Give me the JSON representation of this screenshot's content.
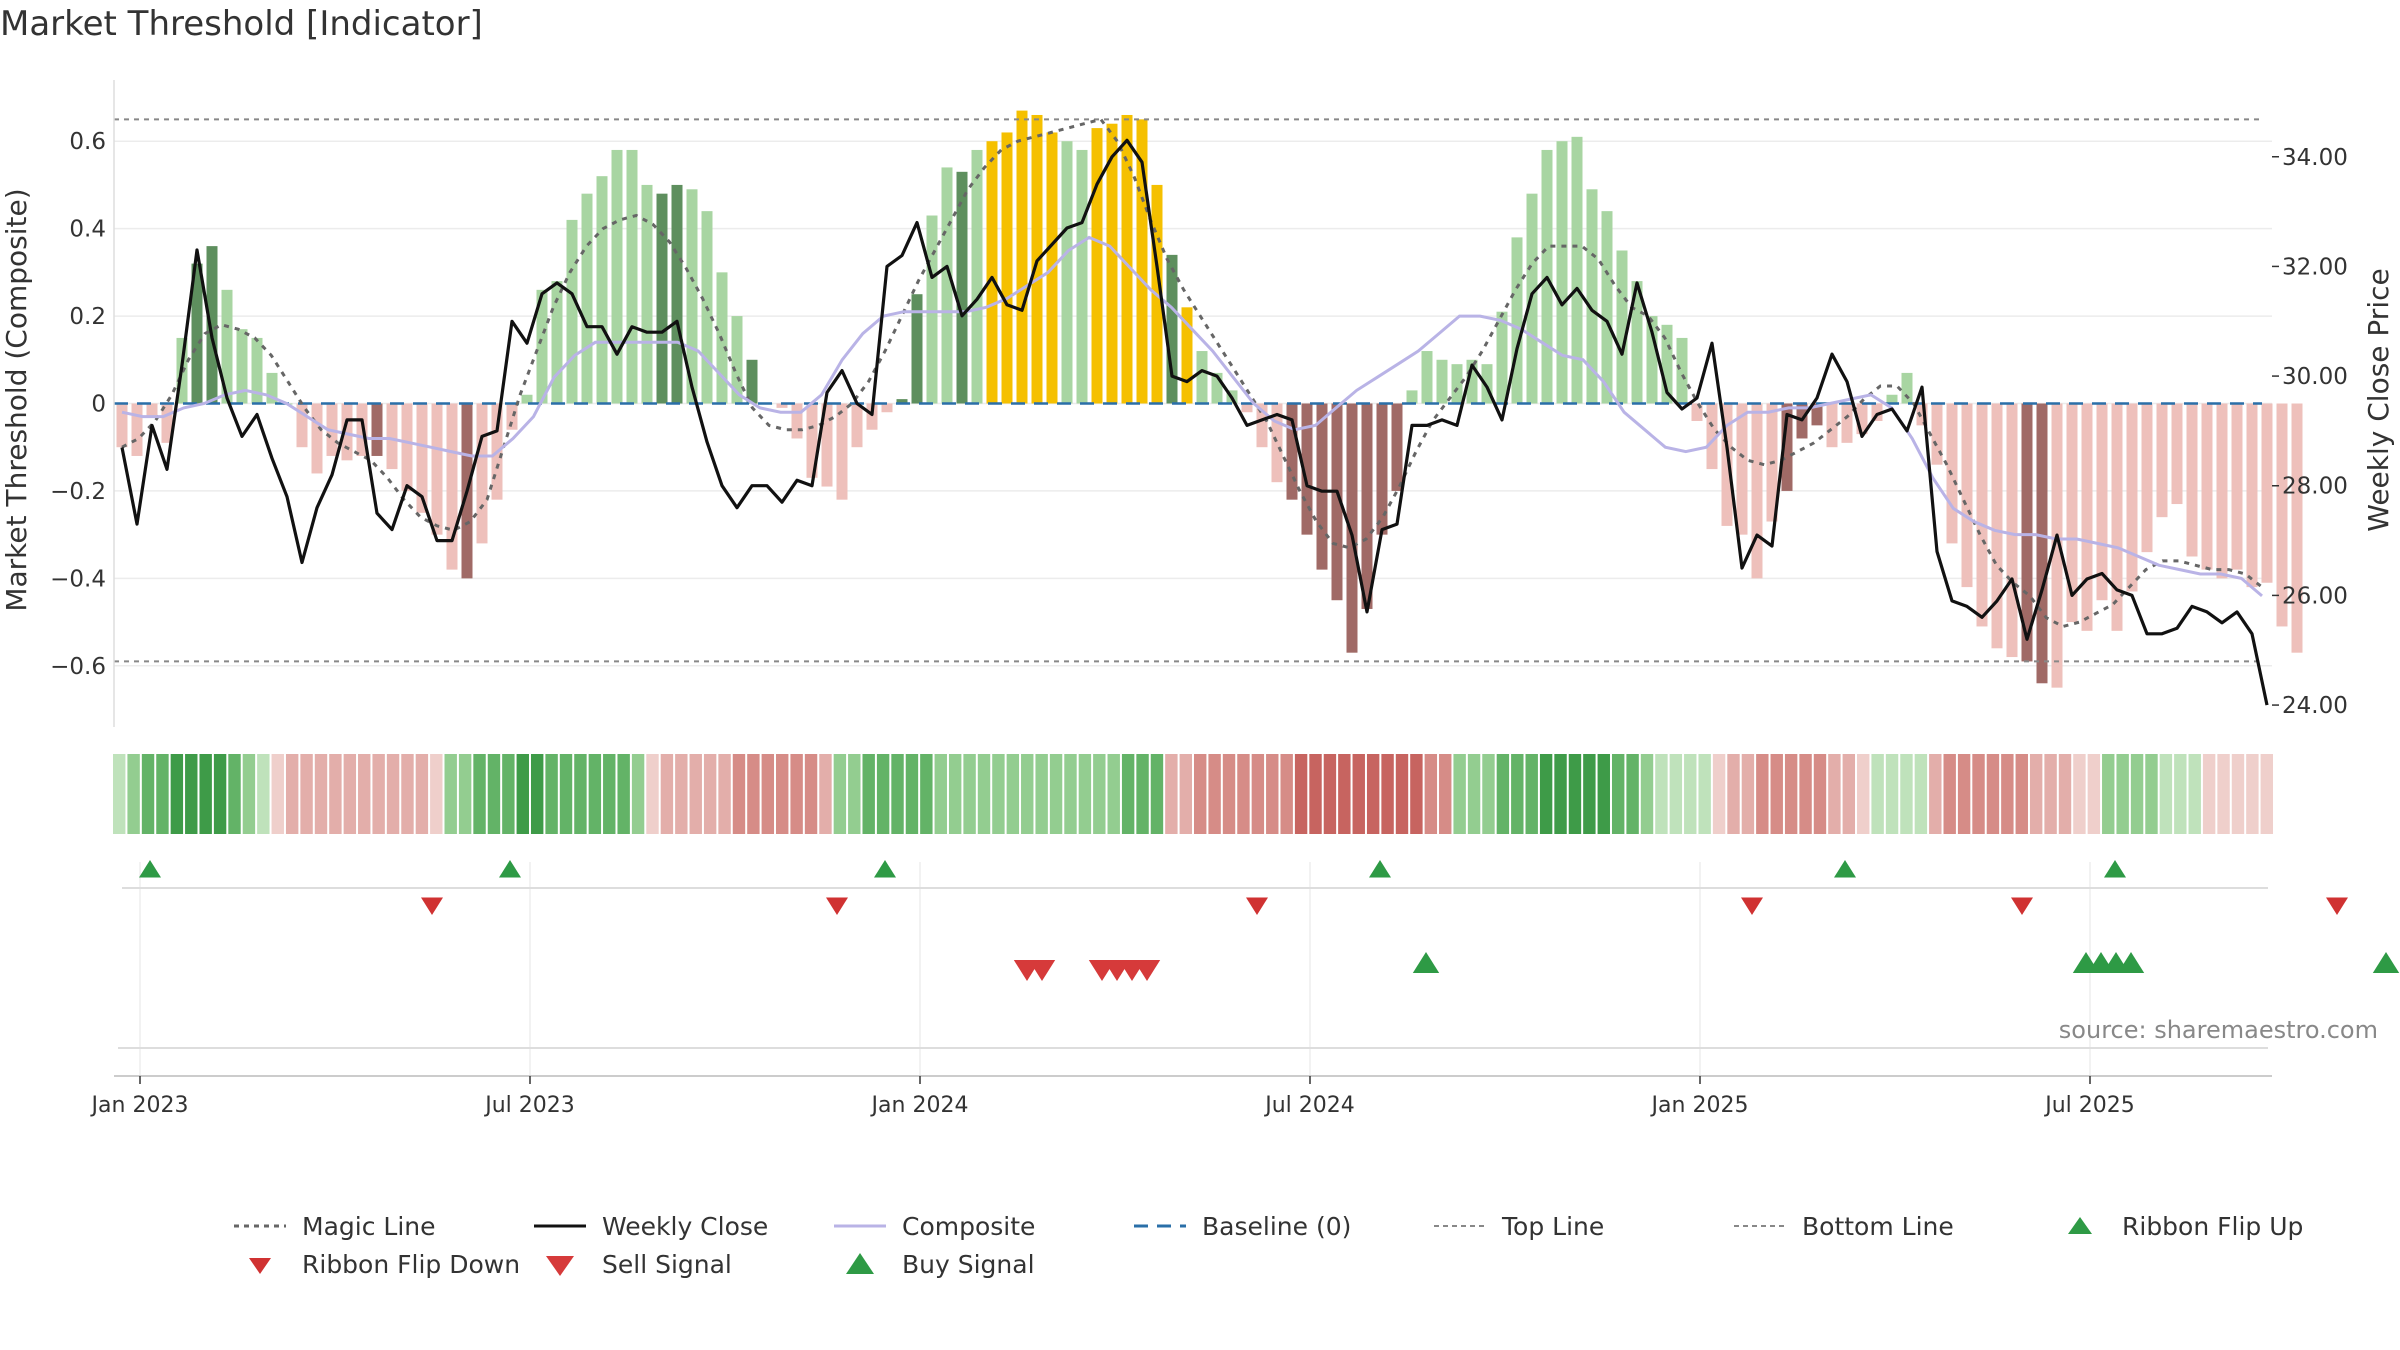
{
  "title": "Market Threshold [Indicator]",
  "source": "source: sharemaestro.com",
  "colors": {
    "dark_green": "#5e8f5e",
    "light_green": "#a8d5a2",
    "dark_red": "#a06a66",
    "light_red": "#eec0bb",
    "gold": "#f5c000",
    "close": "#111111",
    "composite": "#b9b3e6",
    "magic": "#666666",
    "baseline": "#2a6fa8",
    "ref_lines": "#888888",
    "buy": "#2e9a45",
    "sell": "#d63a3a"
  },
  "chart_data": {
    "type": "bar",
    "title": "Market Threshold [Indicator]",
    "ylabel": "Market Threshold (Composite)",
    "ylabel_right": "Weekly Close Price",
    "ylim": [
      -0.74,
      0.74
    ],
    "ylim_right": [
      23.6,
      35.4
    ],
    "yticks_left": [
      "0.6",
      "0.4",
      "0.2",
      "0",
      "−0.2",
      "−0.4",
      "−0.6"
    ],
    "yticks_left_values": [
      0.6,
      0.4,
      0.2,
      0,
      -0.2,
      -0.4,
      -0.6
    ],
    "yticks_right": [
      "34.00",
      "32.00",
      "30.00",
      "28.00",
      "26.00",
      "24.00"
    ],
    "yticks_right_values": [
      34,
      32,
      30,
      28,
      26,
      24
    ],
    "xticks": [
      "Jan 2023",
      "Jul 2023",
      "Jan 2024",
      "Jul 2024",
      "Jan 2025",
      "Jul 2025"
    ],
    "xticks_weeks": [
      0,
      26,
      52,
      78,
      104,
      130
    ],
    "top_line": 0.65,
    "bottom_line": -0.59,
    "composite": [
      -0.1,
      -0.12,
      -0.03,
      -0.09,
      0.15,
      0.32,
      0.36,
      0.26,
      0.17,
      0.15,
      0.07,
      0.0,
      -0.1,
      -0.16,
      -0.12,
      -0.13,
      -0.12,
      -0.12,
      -0.15,
      -0.2,
      -0.25,
      -0.3,
      -0.38,
      -0.4,
      -0.32,
      -0.22,
      -0.06,
      0.02,
      0.26,
      0.28,
      0.42,
      0.48,
      0.52,
      0.58,
      0.58,
      0.5,
      0.48,
      0.5,
      0.49,
      0.44,
      0.3,
      0.2,
      0.1,
      0.0,
      -0.01,
      -0.08,
      -0.17,
      -0.19,
      -0.22,
      -0.1,
      -0.06,
      -0.02,
      0.01,
      0.25,
      0.43,
      0.54,
      0.53,
      0.58,
      0.6,
      0.62,
      0.67,
      0.66,
      0.62,
      0.6,
      0.58,
      0.63,
      0.64,
      0.66,
      0.65,
      0.5,
      0.34,
      0.22,
      0.12,
      0.07,
      0.03,
      -0.02,
      -0.1,
      -0.18,
      -0.22,
      -0.3,
      -0.38,
      -0.45,
      -0.57,
      -0.47,
      -0.3,
      -0.2,
      0.03,
      0.12,
      0.1,
      0.09,
      0.1,
      0.09,
      0.21,
      0.38,
      0.48,
      0.58,
      0.6,
      0.61,
      0.49,
      0.44,
      0.35,
      0.28,
      0.2,
      0.18,
      0.15,
      -0.04,
      -0.15,
      -0.28,
      -0.3,
      -0.4,
      -0.27,
      -0.2,
      -0.08,
      -0.05,
      -0.1,
      -0.09,
      -0.07,
      -0.04,
      0.02,
      0.07,
      -0.05,
      -0.14,
      -0.32,
      -0.42,
      -0.51,
      -0.56,
      -0.58,
      -0.59,
      -0.64,
      -0.65,
      -0.5,
      -0.52,
      -0.45,
      -0.52,
      -0.43,
      -0.34,
      -0.26,
      -0.23,
      -0.35,
      -0.38,
      -0.4,
      -0.38,
      -0.42,
      -0.41,
      -0.51,
      -0.57
    ],
    "bar_styles": "llllldDllllllllllDlllllDllllllllllllDDllllDlllllllllDDlldlgggggllgggggdgllllllDDDDDdDDllllllllllllllllllllllllldDDlllllllllllllDDllllllllllllllllllllllllllDlgggllllllllllllllll",
    "close": [
      28.7,
      27.3,
      29.1,
      28.3,
      30.2,
      32.3,
      30.7,
      29.6,
      28.9,
      29.3,
      28.5,
      27.8,
      26.6,
      27.6,
      28.2,
      29.2,
      29.2,
      27.5,
      27.2,
      28.0,
      27.8,
      27.0,
      27.0,
      27.9,
      28.9,
      29.0,
      31.0,
      30.6,
      31.5,
      31.7,
      31.5,
      30.9,
      30.9,
      30.4,
      30.9,
      30.8,
      30.8,
      31.0,
      29.8,
      28.8,
      28.0,
      27.6,
      28.0,
      28.0,
      27.7,
      28.1,
      28.0,
      29.7,
      30.1,
      29.5,
      29.3,
      32.0,
      32.2,
      32.8,
      31.8,
      32.0,
      31.1,
      31.4,
      31.8,
      31.3,
      31.2,
      32.1,
      32.4,
      32.7,
      32.8,
      33.5,
      34.0,
      34.3,
      33.9,
      32.0,
      30.0,
      29.9,
      30.1,
      30.0,
      29.6,
      29.1,
      29.2,
      29.3,
      29.2,
      28.0,
      27.9,
      27.9,
      27.1,
      25.7,
      27.2,
      27.3,
      29.1,
      29.1,
      29.2,
      29.1,
      30.2,
      29.8,
      29.2,
      30.5,
      31.5,
      31.8,
      31.3,
      31.6,
      31.2,
      31.0,
      30.4,
      31.7,
      30.8,
      29.7,
      29.4,
      29.6,
      30.6,
      28.7,
      26.5,
      27.1,
      26.9,
      29.3,
      29.2,
      29.6,
      30.4,
      29.9,
      28.9,
      29.3,
      29.4,
      29.0,
      29.8,
      26.8,
      25.9,
      25.8,
      25.6,
      25.9,
      26.3,
      25.2,
      26.1,
      27.1,
      26.0,
      26.3,
      26.4,
      26.1,
      26.0,
      25.3,
      25.3,
      25.4,
      25.8,
      25.7,
      25.5,
      25.7,
      25.3,
      24.0
    ],
    "magic": [
      -0.1,
      -0.08,
      -0.04,
      0.02,
      0.1,
      0.16,
      0.18,
      0.17,
      0.15,
      0.11,
      0.05,
      -0.01,
      -0.06,
      -0.09,
      -0.11,
      -0.13,
      -0.17,
      -0.22,
      -0.26,
      -0.28,
      -0.29,
      -0.27,
      -0.22,
      -0.1,
      0.02,
      0.12,
      0.22,
      0.3,
      0.36,
      0.4,
      0.42,
      0.43,
      0.41,
      0.37,
      0.31,
      0.24,
      0.16,
      0.07,
      -0.01,
      -0.05,
      -0.06,
      -0.06,
      -0.05,
      -0.03,
      0.0,
      0.05,
      0.12,
      0.2,
      0.28,
      0.35,
      0.42,
      0.49,
      0.54,
      0.58,
      0.6,
      0.61,
      0.62,
      0.63,
      0.64,
      0.65,
      0.6,
      0.52,
      0.42,
      0.33,
      0.26,
      0.2,
      0.14,
      0.08,
      0.02,
      -0.04,
      -0.12,
      -0.2,
      -0.27,
      -0.32,
      -0.33,
      -0.31,
      -0.26,
      -0.19,
      -0.11,
      -0.04,
      0.01,
      0.06,
      0.12,
      0.19,
      0.26,
      0.32,
      0.36,
      0.36,
      0.36,
      0.33,
      0.27,
      0.22,
      0.2,
      0.15,
      0.07,
      0.0,
      -0.06,
      -0.1,
      -0.13,
      -0.14,
      -0.13,
      -0.11,
      -0.09,
      -0.06,
      -0.03,
      0.01,
      0.04,
      0.04,
      0.0,
      -0.07,
      -0.14,
      -0.22,
      -0.3,
      -0.37,
      -0.41,
      -0.44,
      -0.49,
      -0.51,
      -0.5,
      -0.48,
      -0.46,
      -0.42,
      -0.38,
      -0.36,
      -0.36,
      -0.37,
      -0.38,
      -0.38,
      -0.39,
      -0.42
    ],
    "composite_line": [
      -0.02,
      -0.03,
      -0.03,
      -0.01,
      0.0,
      0.02,
      0.03,
      0.02,
      0.0,
      -0.03,
      -0.06,
      -0.07,
      -0.08,
      -0.08,
      -0.09,
      -0.1,
      -0.11,
      -0.12,
      -0.12,
      -0.08,
      -0.03,
      0.06,
      0.11,
      0.14,
      0.14,
      0.14,
      0.14,
      0.14,
      0.12,
      0.07,
      0.02,
      -0.01,
      -0.02,
      -0.02,
      0.02,
      0.1,
      0.16,
      0.2,
      0.21,
      0.21,
      0.21,
      0.21,
      0.22,
      0.24,
      0.27,
      0.3,
      0.35,
      0.38,
      0.36,
      0.31,
      0.26,
      0.22,
      0.17,
      0.12,
      0.06,
      0.0,
      -0.04,
      -0.06,
      -0.05,
      -0.01,
      0.03,
      0.06,
      0.09,
      0.12,
      0.16,
      0.2,
      0.2,
      0.19,
      0.17,
      0.14,
      0.11,
      0.1,
      0.05,
      -0.02,
      -0.06,
      -0.1,
      -0.11,
      -0.1,
      -0.05,
      -0.02,
      -0.02,
      -0.01,
      -0.01,
      0.0,
      0.01,
      0.02,
      -0.01,
      -0.08,
      -0.17,
      -0.24,
      -0.27,
      -0.29,
      -0.3,
      -0.3,
      -0.31,
      -0.31,
      -0.32,
      -0.33,
      -0.35,
      -0.37,
      -0.38,
      -0.39,
      -0.39,
      -0.4,
      -0.44
    ],
    "ribbon": [
      1,
      2,
      3,
      3,
      4,
      4,
      4,
      4,
      3,
      2,
      1,
      -1,
      -2,
      -2,
      -2,
      -2,
      -2,
      -2,
      -2,
      -2,
      -2,
      -2,
      -1,
      2,
      2,
      3,
      3,
      3,
      4,
      4,
      3,
      3,
      3,
      3,
      3,
      3,
      2,
      -1,
      -2,
      -2,
      -2,
      -2,
      -2,
      -3,
      -3,
      -3,
      -3,
      -3,
      -3,
      -2,
      2,
      2,
      3,
      3,
      3,
      3,
      3,
      2,
      2,
      2,
      2,
      2,
      2,
      2,
      2,
      2,
      2,
      2,
      2,
      2,
      3,
      3,
      3,
      -2,
      -2,
      -3,
      -3,
      -3,
      -3,
      -3,
      -3,
      -3,
      -4,
      -4,
      -4,
      -4,
      -4,
      -4,
      -4,
      -4,
      -4,
      -3,
      -3,
      2,
      2,
      2,
      3,
      3,
      3,
      4,
      4,
      4,
      4,
      4,
      3,
      3,
      2,
      1,
      1,
      1,
      1,
      -1,
      -2,
      -2,
      -3,
      -3,
      -3,
      -3,
      -3,
      -2,
      -2,
      -1,
      1,
      1,
      1,
      1,
      -2,
      -3,
      -3,
      -3,
      -3,
      -3,
      -3,
      -2,
      -2,
      -2,
      -1,
      -1,
      2,
      2,
      2,
      2,
      1,
      1,
      1,
      -1,
      -1,
      -1,
      -1,
      -1
    ],
    "ribbon_flip_up_weeks": [
      0,
      24,
      49,
      82,
      113,
      131
    ],
    "ribbon_flip_down_weeks": [
      12,
      39,
      67,
      100,
      118,
      139
    ],
    "sell_signal_weeks": [
      55,
      56,
      60,
      61,
      62,
      63
    ],
    "buy_signal_weeks": [
      78,
      122,
      123,
      124,
      125,
      142
    ],
    "legend": [
      "Magic Line",
      "Weekly Close",
      "Composite",
      "Baseline (0)",
      "Top Line",
      "Bottom Line",
      "Ribbon Flip Up",
      "Ribbon Flip Down",
      "Sell Signal",
      "Buy Signal"
    ],
    "legend_placement": "bottom-center",
    "grid": true
  }
}
